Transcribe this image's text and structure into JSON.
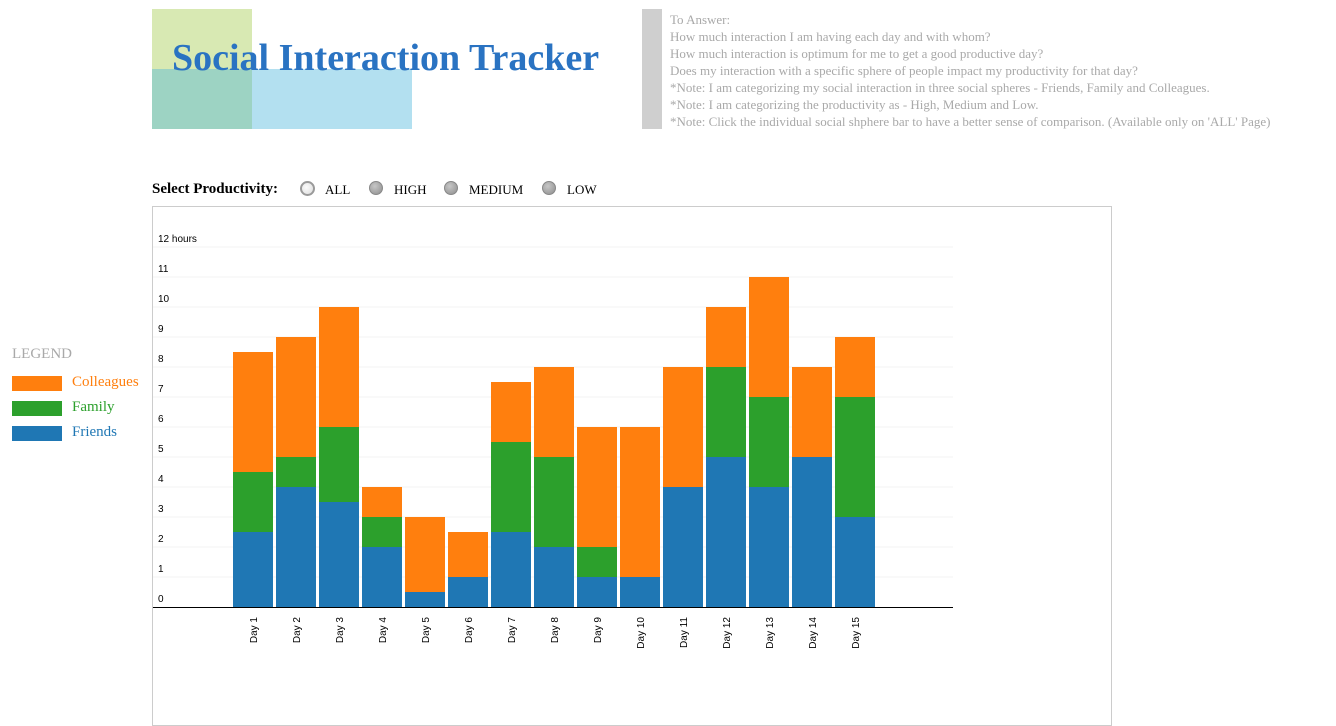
{
  "header": {
    "title": "Social Interaction Tracker",
    "notes": [
      "To Answer:",
      "How much interaction I am having each day and with whom?",
      "How much interaction is optimum for me to get a good productive day?",
      "Does my interaction with a specific sphere of people impact my productivity for that day?",
      "*Note: I am categorizing my social interaction in three social spheres - Friends, Family and Colleagues.",
      "*Note: I am categorizing the productivity as - High, Medium and Low.",
      "*Note: Click the individual social shphere bar to have a better sense of comparison. (Available only on 'ALL' Page)"
    ]
  },
  "filter": {
    "label": "Select Productivity:",
    "options": [
      "ALL",
      "HIGH",
      "MEDIUM",
      "LOW"
    ],
    "selected": "ALL"
  },
  "legend": {
    "title": "LEGEND",
    "items": [
      {
        "label": "Colleagues",
        "color": "#ff7f0e"
      },
      {
        "label": "Family",
        "color": "#2ca02c"
      },
      {
        "label": "Friends",
        "color": "#1f77b4"
      }
    ]
  },
  "chart_data": {
    "type": "bar",
    "stacked": true,
    "categories": [
      "Day 1",
      "Day 2",
      "Day 3",
      "Day 4",
      "Day 5",
      "Day 6",
      "Day 7",
      "Day 8",
      "Day 9",
      "Day 10",
      "Day 11",
      "Day 12",
      "Day 13",
      "Day 14",
      "Day 15"
    ],
    "series": [
      {
        "name": "Friends",
        "color": "#1f77b4",
        "values": [
          2.5,
          4,
          3.5,
          2,
          0.5,
          1,
          2.5,
          2,
          1,
          1,
          4,
          5,
          4,
          5,
          3
        ]
      },
      {
        "name": "Family",
        "color": "#2ca02c",
        "values": [
          2,
          1,
          2.5,
          1,
          0,
          0,
          3,
          3,
          1,
          0,
          0,
          3,
          3,
          0,
          4
        ]
      },
      {
        "name": "Colleagues",
        "color": "#ff7f0e",
        "values": [
          4,
          4,
          4,
          1,
          2.5,
          1.5,
          2,
          3,
          4,
          5,
          4,
          2,
          4,
          3,
          2
        ]
      }
    ],
    "yticks": [
      "0",
      "1",
      "2",
      "3",
      "4",
      "5",
      "6",
      "7",
      "8",
      "9",
      "10",
      "11",
      "12 hours"
    ],
    "ylim": [
      0,
      12
    ],
    "grid": true
  }
}
